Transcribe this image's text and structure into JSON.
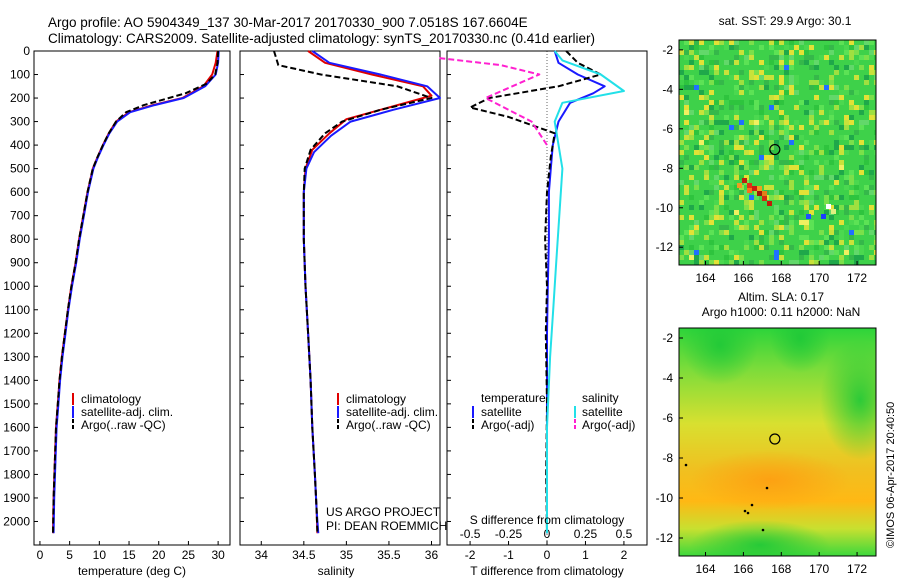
{
  "header": {
    "line1": "Argo profile: AO 5904349_137 30-Mar-2017 20170330_900 7.0518S 167.6604E",
    "line2": "Climatology: CARS2009. Satellite-adjusted climatology: synTS_20170330.nc (0.41d earlier)"
  },
  "colors": {
    "climatology": "#e00000",
    "satellite": "#1a1aff",
    "argo": "#000000",
    "sat_salinity": "#22e0e8",
    "argo_salinity": "#ff20d0"
  },
  "credits": {
    "project": "US ARGO PROJECT",
    "pi": "PI: DEAN ROEMMICH"
  },
  "stamp": "©IMOS 06-Apr-2017 20:40:50",
  "chart_data": [
    {
      "id": "temperature",
      "type": "line",
      "xlabel": "temperature (deg C)",
      "ylabel": "",
      "xlim": [
        -1,
        32
      ],
      "ylim": [
        2100,
        0
      ],
      "xticks": [
        0,
        5,
        10,
        15,
        20,
        25,
        30
      ],
      "xticklabels": [
        "0",
        "5",
        "10",
        "15",
        "20",
        "25",
        "30"
      ],
      "yticks": [
        0,
        100,
        200,
        300,
        400,
        500,
        600,
        700,
        800,
        900,
        1000,
        1100,
        1200,
        1300,
        1400,
        1500,
        1600,
        1700,
        1800,
        1900,
        2000
      ],
      "legend": [
        "climatology",
        "satellite-adj. clim.",
        "Argo(..raw -QC)"
      ],
      "legend_position": "lower-middle",
      "series": [
        {
          "name": "climatology",
          "color": "#e00000",
          "dash": false,
          "x": [
            29.9,
            29.6,
            29.0,
            27.5,
            24.0,
            19.0,
            15.0,
            12.8,
            11.6,
            10.6,
            9.7,
            8.9,
            8.0,
            7.3,
            6.6,
            6.0,
            5.3,
            4.7,
            4.2,
            3.7,
            3.3,
            3.0,
            2.7,
            2.5,
            2.3,
            2.2
          ],
          "y": [
            0,
            50,
            100,
            150,
            200,
            230,
            260,
            300,
            350,
            400,
            450,
            500,
            600,
            700,
            800,
            900,
            1000,
            1100,
            1200,
            1300,
            1400,
            1500,
            1600,
            1750,
            1900,
            2050
          ]
        },
        {
          "name": "satellite-adj. clim.",
          "color": "#1a1aff",
          "dash": false,
          "x": [
            30.1,
            30.0,
            29.6,
            27.8,
            24.2,
            19.3,
            15.2,
            13.0,
            11.7,
            10.7,
            9.8,
            9.0,
            8.1,
            7.4,
            6.7,
            6.1,
            5.4,
            4.8,
            4.3,
            3.8,
            3.4,
            3.1,
            2.8,
            2.6,
            2.4,
            2.3
          ],
          "y": [
            0,
            50,
            100,
            150,
            200,
            230,
            260,
            300,
            350,
            400,
            450,
            500,
            600,
            700,
            800,
            900,
            1000,
            1100,
            1200,
            1300,
            1400,
            1500,
            1600,
            1750,
            1900,
            2050
          ]
        },
        {
          "name": "Argo(..raw -QC)",
          "color": "#000000",
          "dash": true,
          "x": [
            30.0,
            29.9,
            29.5,
            28.0,
            24.5,
            17.5,
            14.5,
            12.8,
            11.6,
            10.6,
            9.7,
            8.9,
            8.0,
            7.3,
            6.6,
            6.0,
            5.3,
            4.7,
            4.2,
            3.7,
            3.3,
            3.0,
            2.7,
            2.5,
            2.3,
            2.2
          ],
          "y": [
            0,
            50,
            100,
            140,
            180,
            230,
            260,
            300,
            350,
            400,
            450,
            500,
            600,
            700,
            800,
            900,
            1000,
            1100,
            1200,
            1300,
            1400,
            1500,
            1600,
            1750,
            1900,
            2050
          ]
        }
      ]
    },
    {
      "id": "salinity",
      "type": "line",
      "xlabel": "salinity",
      "ylabel": "",
      "xlim": [
        33.75,
        36.1
      ],
      "ylim": [
        2100,
        0
      ],
      "xticks": [
        34,
        34.5,
        35,
        35.5,
        36
      ],
      "xticklabels": [
        "34",
        "34.5",
        "35",
        "35.5",
        "36"
      ],
      "legend": [
        "climatology",
        "satellite-adj. clim.",
        "Argo(..raw -QC)"
      ],
      "legend_position": "lower-right",
      "series": [
        {
          "name": "climatology",
          "color": "#e00000",
          "dash": false,
          "x": [
            34.55,
            34.75,
            35.3,
            35.9,
            36.0,
            35.5,
            35.0,
            34.8,
            34.6,
            34.52,
            34.5,
            34.5,
            34.52,
            34.55,
            34.58,
            34.6,
            34.63,
            34.65,
            34.66
          ],
          "y": [
            0,
            50,
            100,
            150,
            190,
            240,
            290,
            350,
            420,
            500,
            600,
            800,
            1000,
            1200,
            1400,
            1600,
            1800,
            1950,
            2050
          ]
        },
        {
          "name": "satellite-adj. clim.",
          "color": "#1a1aff",
          "dash": false,
          "x": [
            34.6,
            34.8,
            35.4,
            35.95,
            36.1,
            35.55,
            35.05,
            34.82,
            34.62,
            34.53,
            34.5,
            34.5,
            34.52,
            34.55,
            34.58,
            34.6,
            34.63,
            34.65,
            34.67
          ],
          "y": [
            0,
            50,
            100,
            150,
            200,
            250,
            300,
            360,
            430,
            500,
            600,
            800,
            1000,
            1200,
            1400,
            1600,
            1800,
            1950,
            2050
          ]
        },
        {
          "name": "Argo(..raw -QC)",
          "color": "#000000",
          "dash": true,
          "x": [
            34.15,
            34.2,
            34.7,
            35.6,
            36.0,
            35.4,
            34.95,
            34.75,
            34.58,
            34.51,
            34.5,
            34.5,
            34.52,
            34.55,
            34.58,
            34.6,
            34.63,
            34.65,
            34.66
          ],
          "y": [
            0,
            60,
            100,
            150,
            200,
            250,
            300,
            350,
            420,
            500,
            600,
            800,
            1000,
            1200,
            1400,
            1600,
            1800,
            1950,
            2050
          ]
        }
      ]
    },
    {
      "id": "difference",
      "type": "line",
      "title_bottom_inner": "S difference from climatology",
      "xlabel": "T difference from climatology",
      "xlim": [
        -2.6,
        2.6
      ],
      "ylim": [
        2100,
        0
      ],
      "xticks_top": [
        -0.5,
        -0.25,
        0,
        0.25,
        0.5
      ],
      "xticks_top_labels": [
        "-0.5",
        "-0.25",
        "0",
        "0.25",
        "0.5"
      ],
      "xticks": [
        -2,
        -1,
        0,
        1,
        2
      ],
      "xticklabels": [
        "-2",
        "-1",
        "0",
        "1",
        "2"
      ],
      "legend_temperature_title": "temperature",
      "legend_salinity_title": "salinity",
      "legend": [
        "satellite",
        "Argo(-adj)",
        "satellite",
        "Argo(-adj)"
      ],
      "legend_position": "lower-middle",
      "series": [
        {
          "name": "temperature satellite",
          "color": "#1a1aff",
          "dash": false,
          "x": [
            0.2,
            0.3,
            0.8,
            1.5,
            1.2,
            0.6,
            0.3,
            0.15,
            0.1,
            0.05,
            0.05,
            0.02,
            0.0,
            0.0,
            0.0,
            0.0
          ],
          "y": [
            0,
            50,
            100,
            150,
            180,
            220,
            300,
            400,
            500,
            600,
            800,
            1000,
            1200,
            1500,
            1800,
            2050
          ]
        },
        {
          "name": "temperature Argo(-adj)",
          "color": "#000000",
          "dash": true,
          "x": [
            0.5,
            0.8,
            1.4,
            0.3,
            -1.5,
            -2.0,
            -1.0,
            0.2,
            0.1,
            0.0,
            -0.05,
            0.0,
            -0.03,
            0.0,
            -0.02,
            0.0
          ],
          "y": [
            0,
            50,
            100,
            150,
            200,
            240,
            280,
            350,
            450,
            600,
            800,
            1000,
            1200,
            1500,
            1800,
            2050
          ]
        },
        {
          "name": "salinity satellite",
          "color": "#22e0e8",
          "dash": false,
          "x": [
            0.05,
            0.1,
            0.35,
            0.5,
            0.1,
            0.05,
            0.1,
            0.08,
            0.06,
            0.04,
            0.02,
            0.0,
            0.0
          ],
          "y": [
            0,
            40,
            100,
            170,
            220,
            300,
            500,
            700,
            900,
            1100,
            1300,
            1600,
            2050
          ]
        },
        {
          "name": "salinity Argo(-adj)",
          "color": "#ff20d0",
          "dash": true,
          "x": [
            -0.7,
            -0.3,
            -0.05,
            -0.4,
            -0.1,
            0.0
          ],
          "y": [
            30,
            60,
            100,
            200,
            300,
            400
          ]
        }
      ]
    },
    {
      "id": "sst_map",
      "type": "heatmap",
      "title": "sat. SST: 29.9 Argo: 30.1",
      "xticks": [
        164,
        166,
        168,
        170,
        172
      ],
      "yticks": [
        -2,
        -4,
        -6,
        -8,
        -10,
        -12
      ],
      "xlim": [
        162.6,
        173.0
      ],
      "ylim": [
        -12.9,
        -1.5
      ],
      "argo_marker": {
        "lon": 167.66,
        "lat": -7.05
      }
    },
    {
      "id": "sla_map",
      "type": "heatmap",
      "title_line1": "Altim. SLA: 0.17",
      "title_line2": "Argo h1000: 0.11 h2000: NaN",
      "xticks": [
        164,
        166,
        168,
        170,
        172
      ],
      "yticks": [
        -2,
        -4,
        -6,
        -8,
        -10,
        -12
      ],
      "xlim": [
        162.6,
        173.0
      ],
      "ylim": [
        -12.9,
        -1.5
      ],
      "argo_marker": {
        "lon": 167.66,
        "lat": -7.05
      }
    }
  ]
}
